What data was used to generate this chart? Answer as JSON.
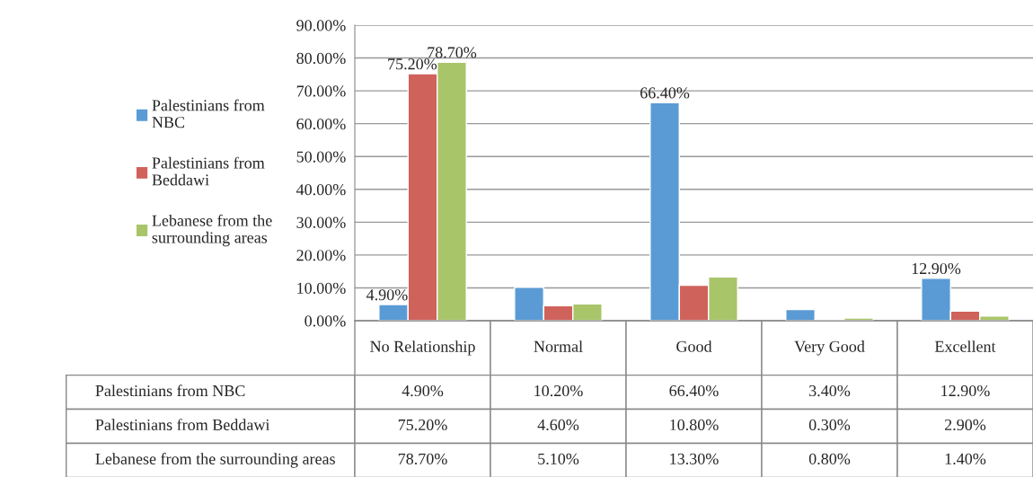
{
  "chart_data": {
    "type": "bar",
    "categories": [
      "No Relationship",
      "Normal",
      "Good",
      "Very Good",
      "Excellent"
    ],
    "series": [
      {
        "name": "Palestinians from NBC",
        "color": "#5b9bd5",
        "values": [
          4.9,
          10.2,
          66.4,
          3.4,
          12.9
        ],
        "value_labels": [
          "4.90%",
          "10.20%",
          "66.40%",
          "3.40%",
          "12.90%"
        ]
      },
      {
        "name": "Palestinians from Beddawi",
        "color": "#d0625c",
        "values": [
          75.2,
          4.6,
          10.8,
          0.3,
          2.9
        ],
        "value_labels": [
          "75.20%",
          "4.60%",
          "10.80%",
          "0.30%",
          "2.90%"
        ]
      },
      {
        "name": "Lebanese from the surrounding areas",
        "color": "#a9c56a",
        "values": [
          78.7,
          5.1,
          13.3,
          0.8,
          1.4
        ],
        "value_labels": [
          "78.70%",
          "5.10%",
          "13.30%",
          "0.80%",
          "1.40%"
        ]
      }
    ],
    "annotations": [
      "4.90%",
      "75.20%",
      "78.70%",
      "66.40%",
      "12.90%"
    ],
    "ylim": [
      0,
      90
    ],
    "yticks": [
      {
        "value": 0,
        "label": "0.00%"
      },
      {
        "value": 10,
        "label": "10.00%"
      },
      {
        "value": 20,
        "label": "20.00%"
      },
      {
        "value": 30,
        "label": "30.00%"
      },
      {
        "value": 40,
        "label": "40.00%"
      },
      {
        "value": 50,
        "label": "50.00%"
      },
      {
        "value": 60,
        "label": "60.00%"
      },
      {
        "value": 70,
        "label": "70.00%"
      },
      {
        "value": 80,
        "label": "80.00%"
      },
      {
        "value": 90,
        "label": "90.00%"
      }
    ],
    "grid": "y",
    "legend": "left"
  }
}
